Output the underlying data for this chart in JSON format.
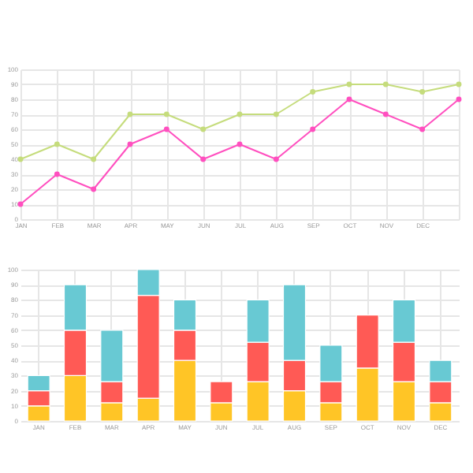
{
  "chart_data": [
    {
      "type": "line",
      "categories": [
        "JAN",
        "FEB",
        "MAR",
        "APR",
        "MAY",
        "JUN",
        "JUL",
        "AUG",
        "SEP",
        "OCT",
        "NOV",
        "DEC",
        null
      ],
      "ylim": [
        0,
        100
      ],
      "yticks": [
        0,
        10,
        20,
        30,
        40,
        50,
        60,
        70,
        80,
        90,
        100
      ],
      "grid": true,
      "marker": "circle",
      "legend": false,
      "series": [
        {
          "color": "#ff4fbf",
          "values": [
            10,
            30,
            20,
            50,
            60,
            40,
            50,
            40,
            60,
            80,
            70,
            60,
            80
          ]
        },
        {
          "color": "#c5dc7c",
          "values": [
            40,
            50,
            40,
            70,
            70,
            60,
            70,
            70,
            85,
            90,
            90,
            85,
            90
          ]
        }
      ]
    },
    {
      "type": "bar",
      "stacked": true,
      "categories": [
        "JAN",
        "FEB",
        "MAR",
        "APR",
        "MAY",
        "JUN",
        "JUL",
        "AUG",
        "SEP",
        "OCT",
        "NOV",
        "DEC"
      ],
      "ylim": [
        0,
        100
      ],
      "yticks": [
        0,
        10,
        20,
        30,
        40,
        50,
        60,
        70,
        80,
        90,
        100
      ],
      "grid": true,
      "legend": false,
      "series": [
        {
          "color": "#ffc526",
          "values": [
            10,
            30,
            12,
            15,
            40,
            12,
            26,
            20,
            12,
            35,
            26,
            12
          ]
        },
        {
          "color": "#ff5a55",
          "values": [
            10,
            30,
            14,
            68,
            20,
            14,
            26,
            20,
            14,
            35,
            26,
            14
          ]
        },
        {
          "color": "#68c9d3",
          "values": [
            10,
            30,
            34,
            17,
            20,
            null,
            28,
            50,
            24,
            null,
            28,
            14
          ]
        }
      ]
    }
  ]
}
